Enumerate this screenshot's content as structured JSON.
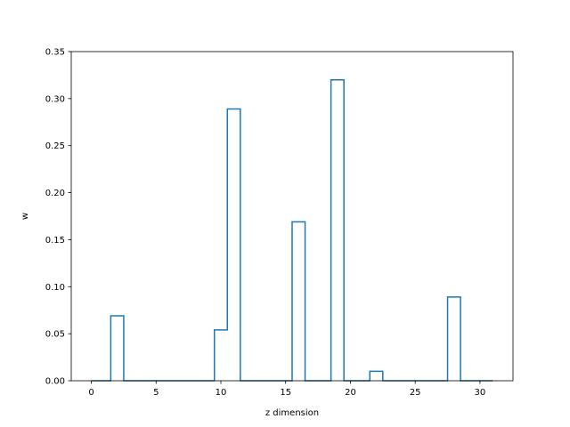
{
  "chart_data": {
    "type": "line",
    "style": "step-mid",
    "title": "",
    "xlabel": "z dimension",
    "ylabel": "w",
    "xlim": [
      -1.55,
      32.55
    ],
    "ylim": [
      0,
      0.35
    ],
    "xticks": [
      0,
      5,
      10,
      15,
      20,
      25,
      30
    ],
    "yticks": [
      0.0,
      0.05,
      0.1,
      0.15,
      0.2,
      0.25,
      0.3,
      0.35
    ],
    "ytick_labels": [
      "0.00",
      "0.05",
      "0.10",
      "0.15",
      "0.20",
      "0.25",
      "0.30",
      "0.35"
    ],
    "grid": false,
    "legend": "none",
    "series": [
      {
        "color": "#1f77b4",
        "x": [
          0,
          1,
          2,
          3,
          4,
          5,
          6,
          7,
          8,
          9,
          10,
          11,
          12,
          13,
          14,
          15,
          16,
          17,
          18,
          19,
          20,
          21,
          22,
          23,
          24,
          25,
          26,
          27,
          28,
          29,
          30,
          31
        ],
        "y": [
          0,
          0,
          0.069,
          0,
          0,
          0,
          0,
          0,
          0,
          0,
          0.054,
          0.289,
          0,
          0,
          0,
          0,
          0.169,
          0,
          0,
          0.32,
          0,
          0,
          0.01,
          0,
          0,
          0,
          0,
          0,
          0.089,
          0,
          0,
          0
        ]
      }
    ]
  }
}
